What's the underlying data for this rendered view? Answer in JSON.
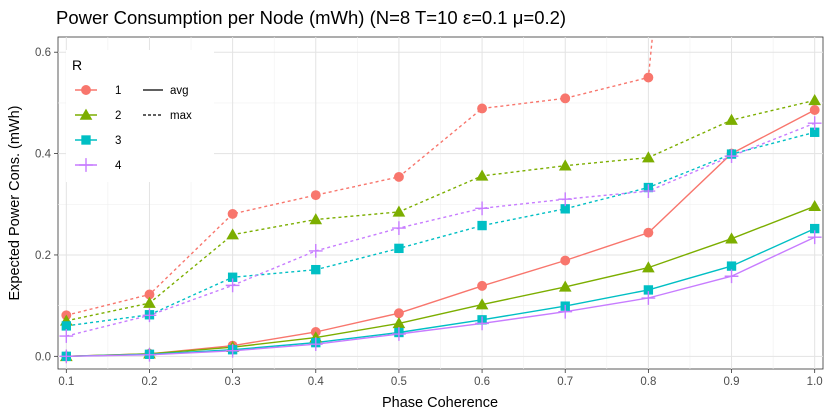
{
  "chart_data": {
    "type": "line",
    "title": "Power Consumption per Node (mWh) (N=8 T=10 ε=0.1 μ=0.2)",
    "xlabel": "Phase Coherence",
    "ylabel": "Expected Power Cons. (mWh)",
    "x": [
      0.1,
      0.2,
      0.3,
      0.4,
      0.5,
      0.6,
      0.7,
      0.8,
      0.9,
      1.0
    ],
    "x_ticks": [
      "0.1",
      "0.2",
      "0.3",
      "0.4",
      "0.5",
      "0.6",
      "0.7",
      "0.8",
      "0.9",
      "1.0"
    ],
    "y_ticks": [
      "0.0",
      "0.2",
      "0.4",
      "0.6"
    ],
    "y_tick_values": [
      0.0,
      0.2,
      0.4,
      0.6
    ],
    "xlim": [
      0.09,
      1.01
    ],
    "ylim": [
      -0.025,
      0.63
    ],
    "grid": true,
    "legend": {
      "title": "R",
      "placement": "top-left",
      "groups": [
        "1",
        "2",
        "3",
        "4"
      ],
      "linetypes": [
        "avg",
        "max"
      ]
    },
    "series": [
      {
        "group": "1",
        "stat": "avg",
        "color": "#F8766D",
        "marker": "circle",
        "values": [
          0.0,
          0.005,
          0.021,
          0.048,
          0.085,
          0.139,
          0.189,
          0.244,
          0.4,
          0.486
        ]
      },
      {
        "group": "1",
        "stat": "max",
        "color": "#F8766D",
        "marker": "circle",
        "values": [
          0.081,
          0.122,
          0.281,
          0.318,
          0.354,
          0.489,
          0.509,
          0.55,
          null,
          null
        ],
        "continues_above": 0.8
      },
      {
        "group": "2",
        "stat": "avg",
        "color": "#7CAE00",
        "marker": "triangle",
        "values": [
          0.0,
          0.005,
          0.018,
          0.037,
          0.065,
          0.102,
          0.137,
          0.175,
          0.232,
          0.296
        ]
      },
      {
        "group": "2",
        "stat": "max",
        "color": "#7CAE00",
        "marker": "triangle",
        "values": [
          0.07,
          0.105,
          0.24,
          0.27,
          0.285,
          0.356,
          0.376,
          0.392,
          0.466,
          0.505
        ]
      },
      {
        "group": "3",
        "stat": "avg",
        "color": "#00BFC4",
        "marker": "square",
        "values": [
          0.0,
          0.004,
          0.013,
          0.027,
          0.047,
          0.072,
          0.099,
          0.131,
          0.178,
          0.252
        ]
      },
      {
        "group": "3",
        "stat": "max",
        "color": "#00BFC4",
        "marker": "square",
        "values": [
          0.06,
          0.082,
          0.156,
          0.171,
          0.213,
          0.258,
          0.291,
          0.333,
          0.399,
          0.442
        ]
      },
      {
        "group": "4",
        "stat": "avg",
        "color": "#C77CFF",
        "marker": "plus",
        "values": [
          0.0,
          0.003,
          0.011,
          0.024,
          0.044,
          0.065,
          0.088,
          0.115,
          0.158,
          0.235
        ]
      },
      {
        "group": "4",
        "stat": "max",
        "color": "#C77CFF",
        "marker": "plus",
        "values": [
          0.04,
          0.081,
          0.14,
          0.208,
          0.253,
          0.292,
          0.31,
          0.326,
          0.395,
          0.46
        ]
      }
    ]
  }
}
